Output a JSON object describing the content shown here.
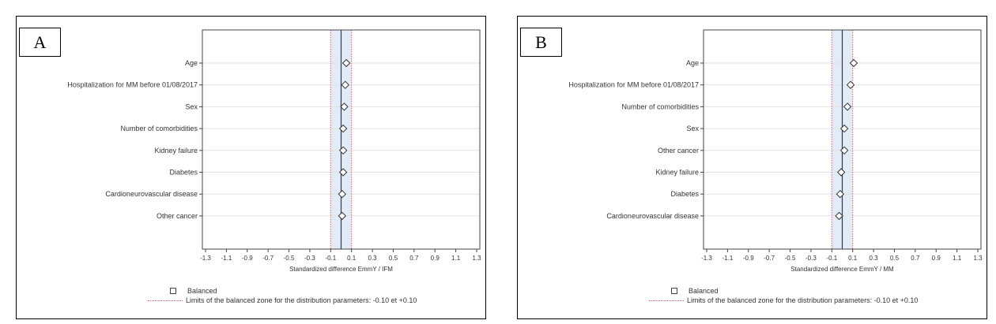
{
  "chart_data": [
    {
      "type": "scatter",
      "panel_label": "A",
      "categories": [
        "Age",
        "Hospitalization for MM before 01/08/2017",
        "Sex",
        "Number of comorbidities",
        "Kidney failure",
        "Diabetes",
        "Cardioneurovascular disease",
        "Other cancer"
      ],
      "values": [
        0.05,
        0.04,
        0.03,
        0.02,
        0.02,
        0.02,
        0.01,
        0.01
      ],
      "xlabel": "Standardized difference EmmY / IFM",
      "xlim": [
        -1.3,
        1.3
      ],
      "xticks": [
        "-1.3",
        "-1.1",
        "-0.9",
        "-0.7",
        "-0.5",
        "-0.3",
        "-0.1",
        "0.1",
        "0.3",
        "0.5",
        "0.7",
        "0.9",
        "1.1",
        "1.3"
      ],
      "reference_line": 0,
      "balanced_zone": [
        -0.1,
        0.1
      ],
      "grid": "horizontal",
      "legend_position": "bottom",
      "legend": {
        "marker_label": "Balanced",
        "limits_label": "Limits of the balanced zone for the distribution parameters: -0.10 et +0.10"
      }
    },
    {
      "type": "scatter",
      "panel_label": "B",
      "categories": [
        "Age",
        "Hospitalization for MM before 01/08/2017",
        "Number of comorbidities",
        "Sex",
        "Other cancer",
        "Kidney failure",
        "Diabetes",
        "Cardioneurovascular disease"
      ],
      "values": [
        0.11,
        0.08,
        0.05,
        0.02,
        0.02,
        -0.01,
        -0.02,
        -0.03
      ],
      "xlabel": "Standardized difference EmmY / MM",
      "xlim": [
        -1.3,
        1.3
      ],
      "xticks": [
        "-1.3",
        "-1.1",
        "-0.9",
        "-0.7",
        "-0.5",
        "-0.3",
        "-0.1",
        "0.1",
        "0.3",
        "0.5",
        "0.7",
        "0.9",
        "1.1",
        "1.3"
      ],
      "reference_line": 0,
      "balanced_zone": [
        -0.1,
        0.1
      ],
      "grid": "horizontal",
      "legend_position": "bottom",
      "legend": {
        "marker_label": "Balanced",
        "limits_label": "Limits of the balanced zone for the distribution parameters: -0.10 et +0.10"
      }
    }
  ]
}
